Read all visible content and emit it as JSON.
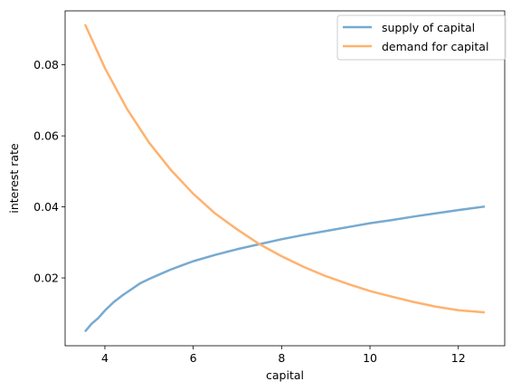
{
  "chart_data": {
    "type": "line",
    "title": "",
    "xlabel": "capital",
    "ylabel": "interest rate",
    "xlim": [
      3.1,
      13.05
    ],
    "ylim": [
      0.0009,
      0.0952
    ],
    "grid": false,
    "legend_position": "top-right",
    "x_ticks": [
      4,
      6,
      8,
      10,
      12
    ],
    "x_tick_labels": [
      "4",
      "6",
      "8",
      "10",
      "12"
    ],
    "y_ticks": [
      0.02,
      0.04,
      0.06,
      0.08
    ],
    "y_tick_labels": [
      "0.02",
      "0.04",
      "0.06",
      "0.08"
    ],
    "series": [
      {
        "name": "supply of capital",
        "color": "#77aad0",
        "x": [
          3.55,
          3.7,
          3.85,
          4.0,
          4.2,
          4.4,
          4.6,
          4.8,
          5.0,
          5.2,
          5.5,
          5.8,
          6.0,
          6.5,
          7.0,
          7.5,
          8.0,
          8.5,
          9.0,
          9.5,
          10.0,
          10.5,
          11.0,
          11.5,
          12.0,
          12.6
        ],
        "y": [
          0.0049,
          0.0071,
          0.0087,
          0.0108,
          0.0132,
          0.0151,
          0.0168,
          0.0185,
          0.0197,
          0.0208,
          0.0224,
          0.0238,
          0.0247,
          0.0265,
          0.0281,
          0.0295,
          0.0309,
          0.0321,
          0.0332,
          0.0343,
          0.0354,
          0.0363,
          0.0373,
          0.0382,
          0.0391,
          0.0401
        ]
      },
      {
        "name": "demand for capital",
        "color": "#ffb26f",
        "x": [
          3.55,
          4.0,
          4.5,
          5.0,
          5.5,
          6.0,
          6.5,
          7.0,
          7.5,
          8.0,
          8.5,
          9.0,
          9.5,
          10.0,
          10.5,
          11.0,
          11.5,
          12.0,
          12.6
        ],
        "y": [
          0.0914,
          0.0791,
          0.0676,
          0.0581,
          0.0503,
          0.0437,
          0.0381,
          0.0336,
          0.0295,
          0.0261,
          0.0231,
          0.0205,
          0.0183,
          0.0163,
          0.0147,
          0.0132,
          0.0119,
          0.0109,
          0.0103
        ]
      }
    ]
  }
}
